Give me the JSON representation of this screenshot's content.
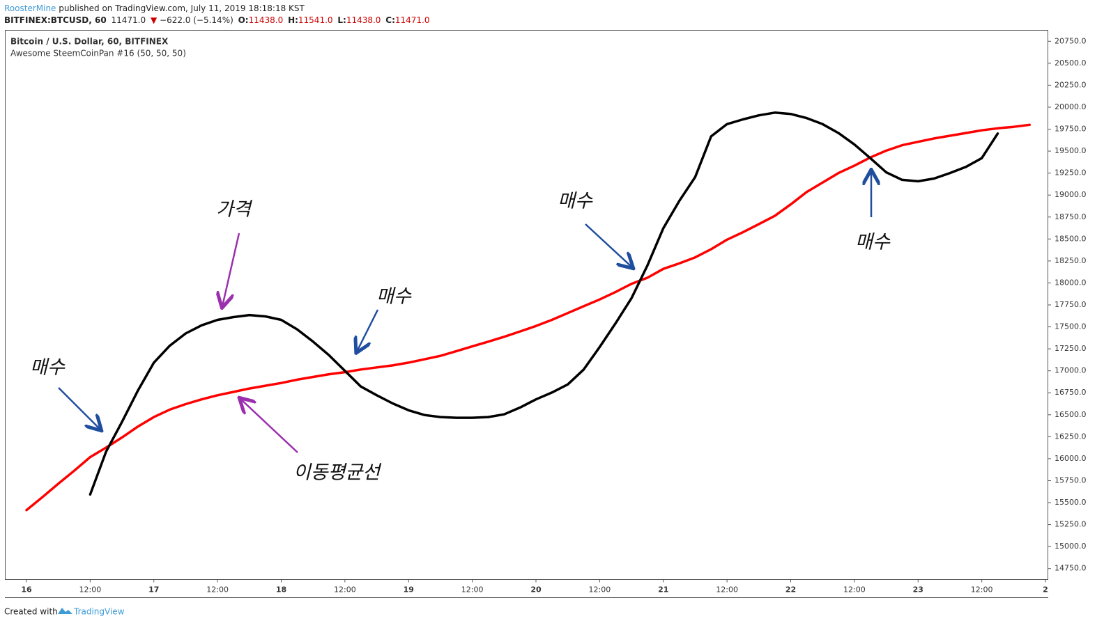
{
  "header": {
    "author": "RoosterMine",
    "published": "published on TradingView.com, July 11, 2019 18:18:18 KST",
    "symbol": "BITFINEX:BTCUSD, 60",
    "last": "11471.0",
    "arrow": "▼",
    "change": "−622.0 (−5.14%)",
    "o_label": "O:",
    "o": "11438.0",
    "h_label": "H:",
    "h": "11541.0",
    "l_label": "L:",
    "l": "11438.0",
    "c_label": "C:",
    "c": "11471.0",
    "legend_main": "Bitcoin / U.S. Dollar, 60, BITFINEX",
    "legend_indicator": "Awesome SteemCoinPan #16 (50, 50, 50)"
  },
  "footer": {
    "created": "Created with",
    "brand": "TradingView"
  },
  "chart_data": {
    "type": "line",
    "categories": [
      "16",
      null,
      null,
      null,
      "12:00",
      null,
      null,
      null,
      "17",
      null,
      null,
      null,
      "12:00",
      null,
      null,
      null,
      "18",
      null,
      null,
      null,
      "12:00",
      null,
      null,
      null,
      "19",
      null,
      null,
      null,
      "12:00",
      null,
      null,
      null,
      "20",
      null,
      null,
      null,
      "12:00",
      null,
      null,
      null,
      "21",
      null,
      null,
      null,
      "12:00",
      null,
      null,
      null,
      "22",
      null,
      null,
      null,
      "12:00",
      null,
      null,
      null,
      "23",
      null,
      null,
      null,
      "12:00",
      null,
      null,
      null,
      "2"
    ],
    "series": [
      {
        "color": "#000000",
        "values": [
          null,
          null,
          null,
          null,
          15593,
          16080,
          16420,
          16776,
          17093,
          17286,
          17425,
          17518,
          17580,
          17611,
          17634,
          17619,
          17580,
          17472,
          17332,
          17178,
          17000,
          16822,
          16722,
          16629,
          16551,
          16497,
          16474,
          16466,
          16466,
          16474,
          16505,
          16582,
          16675,
          16753,
          16845,
          17015,
          17271,
          17541,
          17827,
          18198,
          18624,
          18933,
          19204,
          19668,
          19807,
          19861,
          19907,
          19938,
          19923,
          19876,
          19807,
          19706,
          19575,
          19420,
          19258,
          19173,
          19157,
          19188,
          19250,
          19320,
          19420,
          19700,
          null,
          null,
          null
        ]
      },
      {
        "color": "#ff0000",
        "values": [
          15415,
          15562,
          15716,
          15863,
          16018,
          16126,
          16242,
          16366,
          16474,
          16559,
          16621,
          16675,
          16722,
          16760,
          16799,
          16830,
          16861,
          16899,
          16930,
          16961,
          16985,
          17015,
          17039,
          17062,
          17093,
          17131,
          17170,
          17224,
          17278,
          17332,
          17387,
          17448,
          17510,
          17580,
          17657,
          17735,
          17812,
          17897,
          17990,
          18059,
          18160,
          18222,
          18291,
          18384,
          18492,
          18577,
          18670,
          18763,
          18894,
          19034,
          19142,
          19250,
          19335,
          19428,
          19505,
          19567,
          19606,
          19644,
          19675,
          19706,
          19737,
          19760,
          19776,
          19799,
          null
        ]
      }
    ],
    "ylim": [
      14625,
      20875
    ],
    "yticks": [
      {
        "value": 14750,
        "label": "14750.0"
      },
      {
        "value": 15000,
        "label": "15000.0"
      },
      {
        "value": 15250,
        "label": "15250.0"
      },
      {
        "value": 15500,
        "label": "15500.0"
      },
      {
        "value": 15750,
        "label": "15750.0"
      },
      {
        "value": 16000,
        "label": "16000.0"
      },
      {
        "value": 16250,
        "label": "16250.0"
      },
      {
        "value": 16500,
        "label": "16500.0"
      },
      {
        "value": 16750,
        "label": "16750.0"
      },
      {
        "value": 17000,
        "label": "17000.0"
      },
      {
        "value": 17250,
        "label": "17250.0"
      },
      {
        "value": 17500,
        "label": "17500.0"
      },
      {
        "value": 17750,
        "label": "17750.0"
      },
      {
        "value": 18000,
        "label": "18000.0"
      },
      {
        "value": 18250,
        "label": "18250.0"
      },
      {
        "value": 18500,
        "label": "18500.0"
      },
      {
        "value": 18750,
        "label": "18750.0"
      },
      {
        "value": 19000,
        "label": "19000.0"
      },
      {
        "value": 19250,
        "label": "19250.0"
      },
      {
        "value": 19500,
        "label": "19500.0"
      },
      {
        "value": 19750,
        "label": "19750.0"
      },
      {
        "value": 20000,
        "label": "20000.0"
      },
      {
        "value": 20250,
        "label": "20250.0"
      },
      {
        "value": 20500,
        "label": "20500.0"
      },
      {
        "value": 20750,
        "label": "20750.0"
      }
    ],
    "annotations": [
      "가격",
      "매수",
      "이동평균선",
      "매수",
      "매수",
      "매수"
    ]
  }
}
